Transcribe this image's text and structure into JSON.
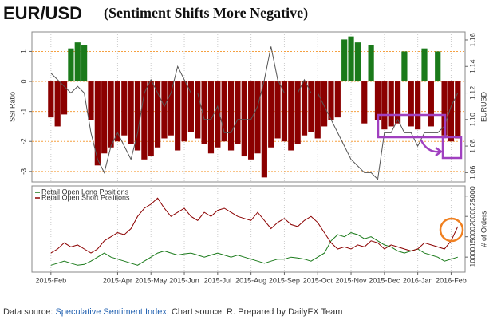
{
  "title": "EUR/USD",
  "subtitle": "(Sentiment Shifts More Negative)",
  "footer": {
    "prefix": "Data source:",
    "link": "Speculative Sentiment Index",
    "suffix": ", Chart source: R. Prepared by DailyFX Team"
  },
  "chart_data": [
    {
      "type": "bar",
      "ylabel": "SSI Ratio",
      "y2label": "EURUSD",
      "x": [
        0,
        0.2,
        0.4,
        0.6,
        0.8,
        1,
        1.2,
        1.4,
        1.6,
        1.8,
        2,
        2.2,
        2.4,
        2.6,
        2.8,
        3,
        3.2,
        3.4,
        3.6,
        3.8,
        4,
        4.2,
        4.4,
        4.6,
        4.8,
        5,
        5.2,
        5.4,
        5.6,
        5.8,
        6,
        6.2,
        6.4,
        6.6,
        6.8,
        7,
        7.2,
        7.4,
        7.6,
        7.8,
        8,
        8.2,
        8.4,
        8.6,
        8.8,
        9,
        9.2,
        9.4,
        9.6,
        9.8,
        10,
        10.2,
        10.4,
        10.6,
        10.8,
        11,
        11.2,
        11.4,
        11.6,
        11.8,
        12,
        12.2
      ],
      "xlim": [
        -0.57,
        12.42
      ],
      "ylim": [
        -3.35,
        1.65
      ],
      "yticks": [
        1,
        0,
        -1,
        -2,
        -3
      ],
      "y2lim": [
        1.053,
        1.166
      ],
      "y2ticks": [
        1.16,
        1.14,
        1.12,
        {
          "value": 1.1,
          "label": "1.10"
        },
        1.08,
        1.06
      ],
      "grid": true,
      "grid_color": "#f5a040",
      "series": [
        {
          "color": "#1a7a1a",
          "negative_color": "#8b0000",
          "values": [
            -1.2,
            -1.5,
            -1.1,
            1.1,
            1.3,
            1.2,
            -1.3,
            -2.8,
            -2.4,
            -2.2,
            -2.0,
            -1.8,
            -2.1,
            -2.3,
            -2.6,
            -2.5,
            -2.2,
            -1.9,
            -1.8,
            -2.3,
            -2.0,
            -1.7,
            -1.9,
            -2.1,
            -2.4,
            -2.2,
            -2.0,
            -2.3,
            -2.1,
            -2.5,
            -2.6,
            -2.4,
            -3.2,
            -2.2,
            -1.9,
            -2.0,
            -2.3,
            -2.1,
            -1.8,
            -1.7,
            -1.9,
            -1.5,
            -1.3,
            -1.2,
            1.4,
            1.5,
            1.3,
            -1.4,
            1.2,
            -1.3,
            -1.6,
            -1.5,
            -1.4,
            1.0,
            -1.5,
            -1.6,
            1.1,
            -1.5,
            1.0,
            -1.8,
            -2.0,
            -1.9
          ]
        },
        {
          "axis": "y2",
          "color": "#555555",
          "values": [
            1.135,
            1.13,
            1.125,
            1.12,
            1.125,
            1.12,
            1.09,
            1.07,
            1.06,
            1.08,
            1.09,
            1.08,
            1.07,
            1.09,
            1.12,
            1.13,
            1.12,
            1.11,
            1.12,
            1.14,
            1.13,
            1.12,
            1.12,
            1.1,
            1.1,
            1.11,
            1.09,
            1.09,
            1.1,
            1.1,
            1.1,
            1.11,
            1.13,
            1.155,
            1.13,
            1.12,
            1.12,
            1.12,
            1.13,
            1.12,
            1.12,
            1.11,
            1.1,
            1.09,
            1.08,
            1.07,
            1.065,
            1.06,
            1.06,
            1.055,
            1.09,
            1.09,
            1.1,
            1.09,
            1.09,
            1.08,
            1.09,
            1.09,
            1.09,
            1.095,
            1.11,
            1.12
          ]
        }
      ]
    },
    {
      "type": "line",
      "y2label": "# of Orders",
      "x": [
        0,
        0.2,
        0.4,
        0.6,
        0.8,
        1,
        1.2,
        1.4,
        1.6,
        1.8,
        2,
        2.2,
        2.4,
        2.6,
        2.8,
        3,
        3.2,
        3.4,
        3.6,
        3.8,
        4,
        4.2,
        4.4,
        4.6,
        4.8,
        5,
        5.2,
        5.4,
        5.6,
        5.8,
        6,
        6.2,
        6.4,
        6.6,
        6.8,
        7,
        7.2,
        7.4,
        7.6,
        7.8,
        8,
        8.2,
        8.4,
        8.6,
        8.8,
        9,
        9.2,
        9.4,
        9.6,
        9.8,
        10,
        10.2,
        10.4,
        10.6,
        10.8,
        11,
        11.2,
        11.4,
        11.6,
        11.8,
        12,
        12.2
      ],
      "xlim": [
        -0.57,
        12.42
      ],
      "xticks": [
        {
          "value": 0,
          "label": "2015-Feb"
        },
        {
          "value": 2,
          "label": "2015-Apr"
        },
        {
          "value": 3,
          "label": "2015-May"
        },
        {
          "value": 4,
          "label": "2015-Jun"
        },
        {
          "value": 5,
          "label": "2015-Jul"
        },
        {
          "value": 6,
          "label": "2015-Aug"
        },
        {
          "value": 7,
          "label": "2015-Sep"
        },
        {
          "value": 8,
          "label": "2015-Oct"
        },
        {
          "value": 9,
          "label": "2015-Nov"
        },
        {
          "value": 10,
          "label": "2015-Dec"
        },
        {
          "value": 11,
          "label": "2016-Jan"
        },
        {
          "value": 12,
          "label": "2016-Feb"
        }
      ],
      "y2lim": [
        6300,
        27500
      ],
      "y2ticks": [
        25000,
        20000,
        15000,
        10000
      ],
      "legend": "top-left",
      "series": [
        {
          "name": "Retail Open Long Positions",
          "color": "#1a7a1a",
          "axis": "y2",
          "values": [
            8000,
            8500,
            9000,
            8500,
            8000,
            8200,
            9000,
            10000,
            11000,
            10000,
            9500,
            9000,
            8500,
            8000,
            9000,
            10000,
            11000,
            11500,
            11000,
            10500,
            10800,
            11000,
            10500,
            10000,
            10500,
            11000,
            10500,
            10000,
            10500,
            10000,
            9500,
            9000,
            8500,
            9000,
            9500,
            9500,
            10000,
            9800,
            9500,
            9000,
            10000,
            11000,
            14000,
            15500,
            15000,
            16000,
            15500,
            14500,
            15000,
            14000,
            13000,
            12500,
            11500,
            11000,
            11500,
            12000,
            11000,
            10500,
            10000,
            9000,
            9500,
            10000
          ]
        },
        {
          "name": "Retail Open Short Positions",
          "color": "#8b0000",
          "axis": "y2",
          "values": [
            11000,
            12000,
            13500,
            12500,
            13000,
            12000,
            11000,
            12000,
            14000,
            15000,
            16000,
            15500,
            17000,
            20000,
            22000,
            23000,
            24500,
            22000,
            20000,
            21000,
            22000,
            20000,
            19000,
            21000,
            20000,
            21500,
            22000,
            21000,
            20000,
            19500,
            19000,
            21000,
            19000,
            17000,
            18500,
            19500,
            18000,
            17500,
            19000,
            20000,
            18500,
            16000,
            13500,
            12000,
            12500,
            12000,
            13000,
            12500,
            14000,
            13500,
            12000,
            13000,
            12500,
            12000,
            11500,
            12000,
            13500,
            13000,
            12500,
            12000,
            14000,
            17500
          ]
        }
      ]
    }
  ]
}
